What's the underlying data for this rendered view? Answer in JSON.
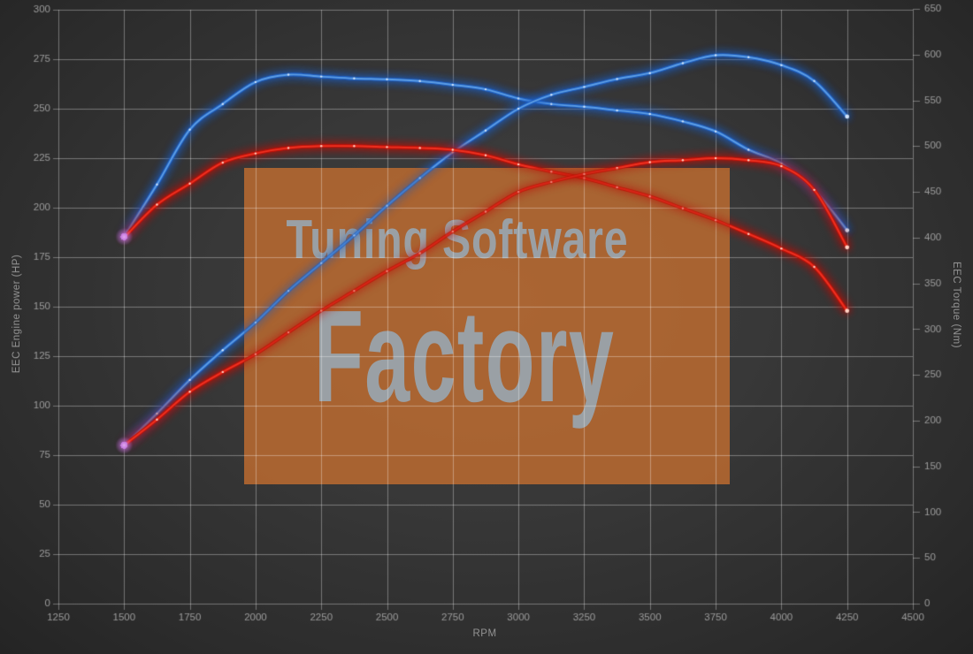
{
  "chart_data": {
    "type": "line",
    "xlabel": "RPM",
    "ylabel_left": "EEC Engine power (HP)",
    "ylabel_right": "EEC Torque (Nm)",
    "x_range": [
      1250,
      4500
    ],
    "y_left_range": [
      0,
      300
    ],
    "y_right_range": [
      0,
      650
    ],
    "x_ticks": [
      1250,
      1500,
      1750,
      2000,
      2250,
      2500,
      2750,
      3000,
      3250,
      3500,
      3750,
      4000,
      4250,
      4500
    ],
    "y_left_ticks": [
      0,
      25,
      50,
      75,
      100,
      125,
      150,
      175,
      200,
      225,
      250,
      275,
      300
    ],
    "y_right_ticks": [
      0,
      50,
      100,
      150,
      200,
      250,
      300,
      350,
      400,
      450,
      500,
      550,
      600,
      650
    ],
    "grid": true,
    "legend": "none",
    "rpm": [
      1500,
      1625,
      1750,
      1875,
      2000,
      2125,
      2250,
      2375,
      2500,
      2625,
      2750,
      2875,
      3000,
      3125,
      3250,
      3375,
      3500,
      3625,
      3750,
      3875,
      4000,
      4125,
      4250
    ],
    "series": [
      {
        "name": "blue-torque",
        "axis": "right",
        "unit": "Nm",
        "color": "blue",
        "values": [
          401,
          458,
          518,
          546,
          570,
          578,
          576,
          574,
          573,
          571,
          567,
          562,
          552,
          546,
          543,
          539,
          535,
          527,
          516,
          496,
          481,
          452,
          408
        ]
      },
      {
        "name": "blue-power",
        "axis": "left",
        "unit": "HP",
        "color": "blue",
        "values": [
          80,
          96,
          113,
          128,
          142,
          158,
          172,
          186,
          201,
          215,
          228,
          239,
          250,
          257,
          261,
          265,
          268,
          273,
          277,
          276,
          272,
          264,
          246
        ]
      },
      {
        "name": "red-torque",
        "axis": "right",
        "unit": "Nm",
        "color": "red",
        "values": [
          400,
          436,
          459,
          482,
          492,
          498,
          500,
          500,
          499,
          498,
          496,
          490,
          480,
          472,
          465,
          455,
          445,
          432,
          419,
          404,
          388,
          368,
          320
        ]
      },
      {
        "name": "red-power",
        "axis": "left",
        "unit": "HP",
        "color": "red",
        "values": [
          80,
          93,
          107,
          117,
          126,
          137,
          148,
          158,
          168,
          177,
          188,
          198,
          208,
          213,
          217,
          220,
          223,
          224,
          225,
          224,
          221,
          209,
          180
        ]
      }
    ]
  },
  "watermark": {
    "line1": "Tuning Software",
    "line2": "Factory",
    "box_color": "rgba(200,112,48,0.78)",
    "text_color": "#9aa0a5"
  },
  "colors": {
    "background_center": "#404040",
    "background_edge": "#242424",
    "grid": "rgba(255,255,255,0.34)",
    "tick_label": "#9c9c9c",
    "blue_core": "#5e9fe4",
    "blue_glow": "#1d5fc4",
    "blue_marker": "#d2e4fa",
    "red_core": "#ee3322",
    "red_glow": "#c01008",
    "red_marker": "#ffd2c4",
    "start_glow": "#c678e0"
  }
}
